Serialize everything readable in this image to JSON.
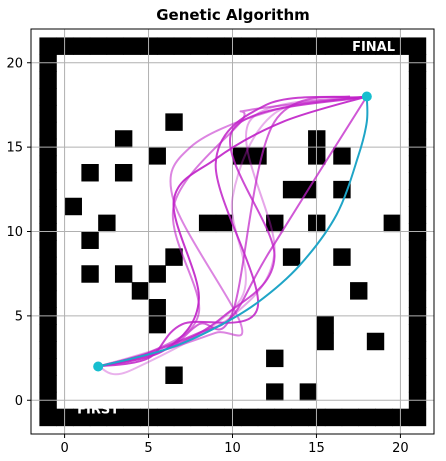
{
  "chart_data": {
    "type": "line",
    "title": "Genetic Algorithm",
    "xlim": [
      -2,
      22
    ],
    "ylim": [
      -2,
      22
    ],
    "xticks": [
      0,
      5,
      10,
      15,
      20
    ],
    "yticks": [
      0,
      5,
      10,
      15,
      20
    ],
    "grid": true,
    "start": {
      "label": "FIRST",
      "x": 2,
      "y": 2
    },
    "goal": {
      "label": "FINAL",
      "x": 18,
      "y": 18
    },
    "colors": {
      "obstacle": "#000000",
      "endpoint": "#17becf",
      "best_path": "#1fa5c7",
      "candidate_path": "#c020c8",
      "grid": "#b0b0b0"
    },
    "obstacles": [
      [
        5,
        1
      ],
      [
        7,
        1
      ],
      [
        9,
        1
      ],
      [
        11,
        1
      ],
      [
        13,
        1
      ],
      [
        15,
        1
      ],
      [
        17,
        1
      ],
      [
        19,
        1
      ],
      [
        21,
        1
      ],
      [
        4,
        2
      ],
      [
        6,
        2
      ],
      [
        8,
        2
      ],
      [
        10,
        2
      ],
      [
        12,
        2
      ],
      [
        14,
        2
      ],
      [
        16,
        2
      ],
      [
        18,
        2
      ],
      [
        20,
        2
      ],
      [
        22,
        2
      ],
      [
        2,
        3
      ],
      [
        5,
        3
      ],
      [
        7,
        3
      ],
      [
        9,
        3
      ],
      [
        11,
        3
      ],
      [
        13,
        3
      ],
      [
        15,
        3
      ],
      [
        17,
        3
      ],
      [
        19,
        3
      ],
      [
        21,
        3
      ],
      [
        4,
        4
      ],
      [
        6,
        4
      ],
      [
        8,
        4
      ],
      [
        10,
        4
      ],
      [
        12,
        4
      ],
      [
        14,
        4
      ],
      [
        16,
        4
      ],
      [
        18,
        4
      ],
      [
        20,
        4
      ],
      [
        22,
        4
      ],
      [
        5,
        5
      ],
      [
        7,
        5
      ],
      [
        9,
        5
      ],
      [
        11,
        5
      ],
      [
        13,
        5
      ],
      [
        15,
        5
      ],
      [
        17,
        5
      ],
      [
        19,
        5
      ],
      [
        21,
        5
      ]
    ],
    "series": [
      {
        "kind": "best",
        "x": [
          2,
          6,
          9,
          11.5,
          14,
          16.2,
          17.5,
          18,
          18
        ],
        "y": [
          2,
          3,
          4.3,
          5.8,
          8,
          11,
          14.5,
          16.5,
          18
        ]
      },
      {
        "kind": "candidate",
        "x": [
          2,
          6,
          8,
          6.5,
          9,
          13,
          18
        ],
        "y": [
          2,
          3,
          6,
          11.8,
          14.3,
          16.5,
          18
        ]
      },
      {
        "kind": "candidate",
        "x": [
          2,
          5,
          8,
          10,
          12.2,
          18
        ],
        "y": [
          2,
          2.8,
          4,
          5,
          8.8,
          18
        ]
      },
      {
        "kind": "candidate",
        "x": [
          2,
          6,
          9,
          10.5,
          6.5,
          7.5,
          12.5,
          18
        ],
        "y": [
          2,
          3,
          4,
          4.5,
          11.8,
          15,
          17.2,
          18
        ]
      },
      {
        "kind": "candidate",
        "x": [
          2,
          5,
          7,
          11.5,
          9,
          12,
          17
        ],
        "y": [
          2,
          2.5,
          4.5,
          5.5,
          14,
          17.5,
          18
        ]
      },
      {
        "kind": "candidate",
        "x": [
          2,
          6,
          10,
          12.5,
          11,
          18
        ],
        "y": [
          2,
          3.2,
          5,
          8.8,
          16.5,
          18
        ]
      },
      {
        "kind": "candidate",
        "x": [
          2,
          6,
          8,
          10,
          12.5,
          18
        ],
        "y": [
          2,
          3,
          4.5,
          5.2,
          16.5,
          18
        ]
      },
      {
        "kind": "candidate",
        "x": [
          2,
          4,
          10.5,
          10,
          12.5,
          18
        ],
        "y": [
          2,
          1.8,
          6,
          12,
          17,
          18
        ]
      },
      {
        "kind": "candidate",
        "x": [
          2,
          5,
          8,
          6.5,
          10.5,
          11,
          18
        ],
        "y": [
          2,
          2.8,
          5.2,
          11.5,
          16.5,
          17.2,
          18
        ]
      },
      {
        "kind": "candidate",
        "x": [
          2,
          6,
          9.5,
          12.5,
          10,
          18
        ],
        "y": [
          2,
          3,
          5,
          8.5,
          16,
          18
        ]
      }
    ]
  }
}
